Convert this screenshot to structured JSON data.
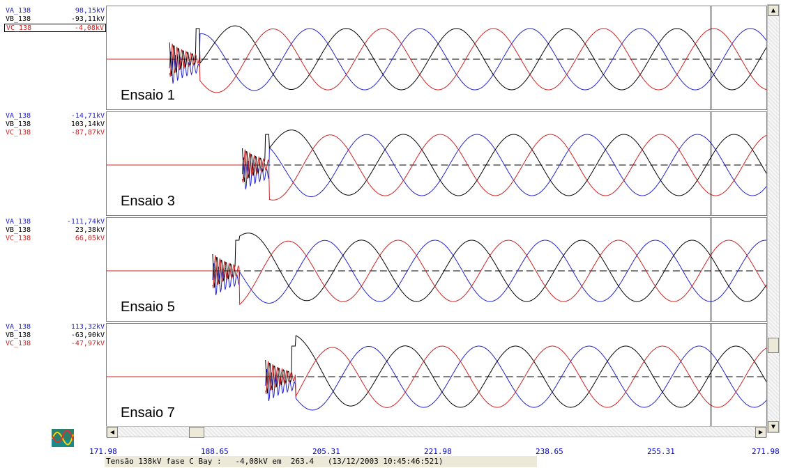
{
  "colors": {
    "va": "#2222cc",
    "vb": "#000000",
    "vc": "#cc2222",
    "axis_ticks": "#0000cc"
  },
  "readouts": [
    {
      "va_label": "VA_138",
      "va_value": "98,15kV",
      "vb_label": "VB_138",
      "vb_value": "-93,11kV",
      "vc_label": "VC_138",
      "vc_value": "-4,08kV"
    },
    {
      "va_label": "VA_138",
      "va_value": "-14,71kV",
      "vb_label": "VB_138",
      "vb_value": "103,14kV",
      "vc_label": "VC_138",
      "vc_value": "-87,87kV"
    },
    {
      "va_label": "VA_138",
      "va_value": "-111,74kV",
      "vb_label": "VB_138",
      "vb_value": "23,38kV",
      "vc_label": "VC_138",
      "vc_value": "66,05kV"
    },
    {
      "va_label": "VA_138",
      "va_value": "113,32kV",
      "vb_label": "VB_138",
      "vb_value": "-63,90kV",
      "vc_label": "VC_138",
      "vc_value": "-47,97kV"
    }
  ],
  "chart_data": {
    "type": "line",
    "x_ticks": [
      "171.98",
      "188.65",
      "205.31",
      "221.98",
      "238.65",
      "255.31",
      "271.98"
    ],
    "xlim": [
      171.98,
      271.98
    ],
    "cursor_x": 263.4,
    "panels": [
      {
        "label": "Ensaio 1",
        "energize_a": 181.5,
        "energize_b": 186.0
      },
      {
        "label": "Ensaio 3",
        "energize_a": 192.5,
        "energize_b": 196.5
      },
      {
        "label": "Ensaio 5",
        "energize_a": 188.0,
        "energize_b": 192.0
      },
      {
        "label": "Ensaio 7",
        "energize_a": 196.0,
        "energize_b": 200.5
      }
    ],
    "series": [
      {
        "name": "VA_138"
      },
      {
        "name": "VB_138"
      },
      {
        "name": "VC_138"
      }
    ],
    "period": 16.67,
    "peak_kv": 113
  },
  "status": {
    "text": "Tensão 138kV fase C Bay :   -4,08kV em  263.4   (13/12/2003 10:45:46:521)"
  },
  "scroll_icons": {
    "up": "arrow-up-icon",
    "down": "arrow-down-icon",
    "left": "arrow-left-icon",
    "right": "arrow-right-icon"
  }
}
